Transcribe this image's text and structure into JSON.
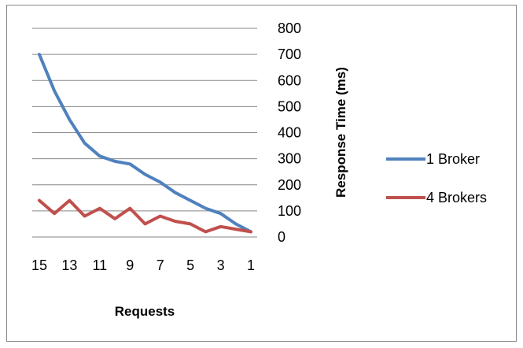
{
  "chart_data": {
    "type": "line",
    "title": "",
    "xlabel": "Requests",
    "ylabel": "Response Time (ms)",
    "x": [
      15,
      14,
      13,
      12,
      11,
      10,
      9,
      8,
      7,
      6,
      5,
      4,
      3,
      2,
      1
    ],
    "x_tick_labels": [
      "15",
      "13",
      "11",
      "9",
      "7",
      "5",
      "3",
      "1"
    ],
    "x_reversed": true,
    "ylim": [
      0,
      800
    ],
    "y_ticks": [
      0,
      100,
      200,
      300,
      400,
      500,
      600,
      700,
      800
    ],
    "y_axis_position": "right",
    "grid": "horizontal major",
    "legend_position": "right",
    "series": [
      {
        "name": "1 Broker",
        "color": "#4F81BD",
        "values": [
          700,
          560,
          450,
          360,
          310,
          290,
          280,
          240,
          210,
          170,
          140,
          110,
          90,
          50,
          20
        ]
      },
      {
        "name": "4 Brokers",
        "color": "#C0504D",
        "values": [
          140,
          90,
          140,
          80,
          110,
          70,
          110,
          50,
          80,
          60,
          50,
          20,
          40,
          30,
          20
        ]
      }
    ]
  }
}
